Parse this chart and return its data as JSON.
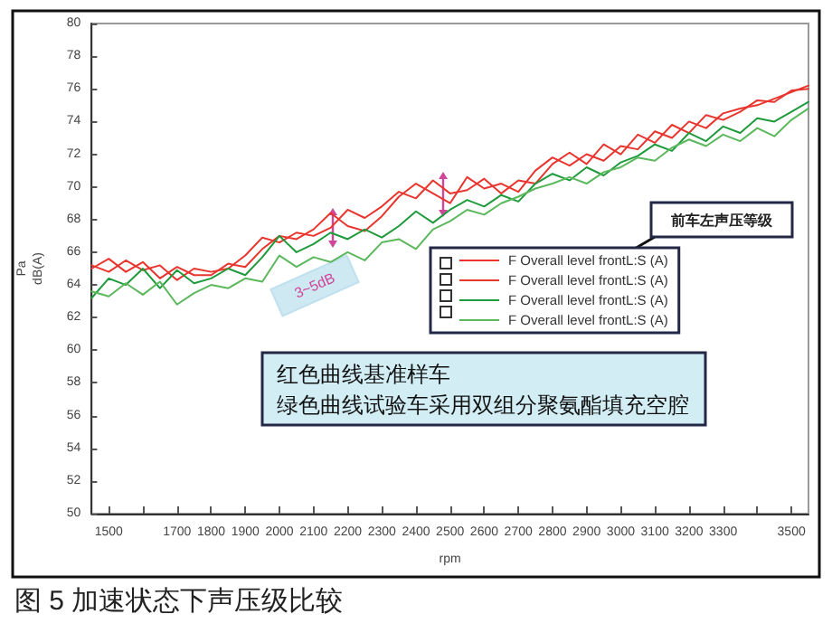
{
  "chart_data": {
    "type": "line",
    "title": "图 5 加速状态下声压级比较",
    "xlabel": "rpm",
    "ylabel": "Pa\ndB(A)",
    "annotations": [
      "3~5dB",
      "前车左声压等级",
      "红色曲线基准样车",
      "绿色曲线试验车采用双组分聚氨酯填充空腔"
    ],
    "x": [
      1450,
      1500,
      1550,
      1600,
      1650,
      1700,
      1750,
      1800,
      1850,
      1900,
      1950,
      2000,
      2050,
      2100,
      2150,
      2200,
      2250,
      2300,
      2350,
      2400,
      2450,
      2500,
      2550,
      2600,
      2650,
      2700,
      2750,
      2800,
      2850,
      2900,
      2950,
      3000,
      3050,
      3100,
      3150,
      3200,
      3250,
      3300,
      3350,
      3400,
      3450,
      3500,
      3550
    ],
    "series": [
      {
        "name": "F Overall level frontL:S (A)",
        "color": "#e8352e",
        "values": [
          65.0,
          65.6,
          64.8,
          65.4,
          64.4,
          65.1,
          64.6,
          64.6,
          65.3,
          65.1,
          66.2,
          67.0,
          66.8,
          67.4,
          68.4,
          67.6,
          67.3,
          68.2,
          69.4,
          70.2,
          69.6,
          69.0,
          70.6,
          69.9,
          70.2,
          69.7,
          71.0,
          71.8,
          71.3,
          72.0,
          71.6,
          72.5,
          72.3,
          73.4,
          73.0,
          74.0,
          73.6,
          74.5,
          74.8,
          75.0,
          75.4,
          75.8,
          76.2
        ]
      },
      {
        "name": "F Overall level frontL:S (A)",
        "color": "#e8352e",
        "values": [
          65.2,
          64.8,
          65.5,
          64.9,
          65.2,
          64.3,
          65.0,
          64.8,
          65.0,
          65.8,
          66.9,
          66.6,
          67.2,
          67.0,
          67.5,
          68.6,
          68.1,
          68.8,
          69.7,
          69.3,
          70.4,
          69.6,
          69.8,
          70.5,
          69.6,
          70.4,
          70.2,
          71.4,
          72.1,
          71.4,
          72.6,
          72.0,
          73.2,
          72.7,
          73.8,
          73.3,
          74.4,
          74.1,
          74.6,
          75.3,
          75.2,
          75.9,
          76.0
        ]
      },
      {
        "name": "F Overall level frontL:S (A)",
        "color": "#1f9a3c",
        "values": [
          63.2,
          64.4,
          64.0,
          65.0,
          63.8,
          64.9,
          64.1,
          64.4,
          65.0,
          64.6,
          65.7,
          67.0,
          66.0,
          66.5,
          67.2,
          66.8,
          67.4,
          66.9,
          67.6,
          68.5,
          67.8,
          68.6,
          69.2,
          68.8,
          69.5,
          69.1,
          70.2,
          70.8,
          70.4,
          71.2,
          70.7,
          71.5,
          71.9,
          72.6,
          72.2,
          73.3,
          72.8,
          73.7,
          73.3,
          74.2,
          74.0,
          74.6,
          75.2
        ]
      },
      {
        "name": "F Overall level frontL:S (A)",
        "color": "#5cb85c",
        "values": [
          63.6,
          63.3,
          64.1,
          63.4,
          64.2,
          62.8,
          63.5,
          64.0,
          63.8,
          64.4,
          64.2,
          65.8,
          65.1,
          65.7,
          65.4,
          66.0,
          65.5,
          66.6,
          66.8,
          66.2,
          67.4,
          67.9,
          68.6,
          68.3,
          69.0,
          69.4,
          69.9,
          70.2,
          70.6,
          70.2,
          70.9,
          71.2,
          71.8,
          71.6,
          72.4,
          72.9,
          72.5,
          73.2,
          72.8,
          73.6,
          73.1,
          74.1,
          74.8
        ]
      }
    ],
    "xlim": [
      1450,
      3550
    ],
    "xticks": [
      1500,
      {
        "value": 1600,
        "label": null
      },
      1700,
      1800,
      1900,
      2000,
      2100,
      2200,
      2300,
      2400,
      2500,
      2600,
      2700,
      2800,
      2900,
      3000,
      3100,
      3200,
      3300,
      {
        "value": 3400,
        "label": null
      },
      3500
    ],
    "ylim": [
      50,
      80
    ],
    "yticks": [
      50,
      52,
      54,
      56,
      58,
      60,
      62,
      64,
      66,
      68,
      70,
      72,
      74,
      76,
      78,
      80
    ],
    "grid": false,
    "legend": "right",
    "marker": "none",
    "line_style": "solid"
  }
}
